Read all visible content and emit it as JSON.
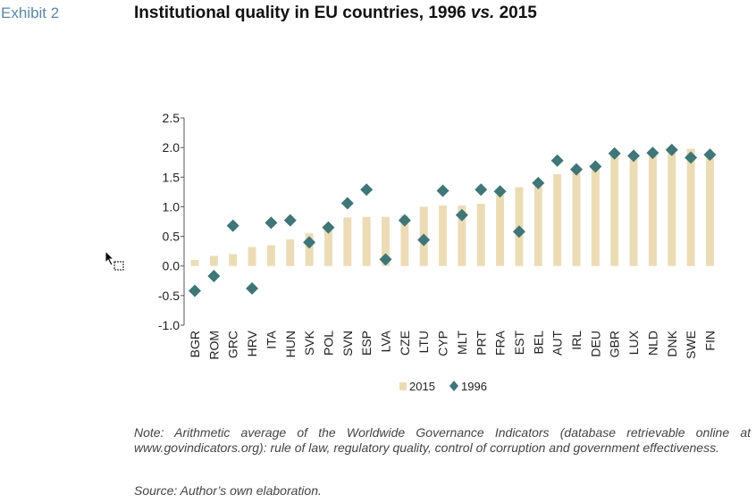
{
  "header": {
    "exhibit": "Exhibit 2",
    "title_main": "Institutional quality in EU countries, 1996 ",
    "title_vs": "vs.",
    "title_end": " 2015"
  },
  "colors": {
    "bar_2015": "#ecdcb6",
    "marker_1996": "#3f7678",
    "exhibit_label": "#5b87a6"
  },
  "chart_data": {
    "type": "bar",
    "title": "Institutional quality in EU countries, 1996 vs. 2015",
    "xlabel": "",
    "ylabel": "",
    "ylim": [
      -1.0,
      2.5
    ],
    "yticks": [
      -1.0,
      -0.5,
      0.0,
      0.5,
      1.0,
      1.5,
      2.0,
      2.5
    ],
    "ytick_labels": [
      "-1.0",
      "-0.5",
      "0.0",
      "0.5",
      "1.0",
      "1.5",
      "2.0",
      "2.5"
    ],
    "grid": false,
    "legend_position": "bottom-center",
    "categories": [
      "BGR",
      "ROM",
      "GRC",
      "HRV",
      "ITA",
      "HUN",
      "SVK",
      "POL",
      "SVN",
      "ESP",
      "LVA",
      "CZE",
      "LTU",
      "CYP",
      "MLT",
      "PRT",
      "FRA",
      "EST",
      "BEL",
      "AUT",
      "IRL",
      "DEU",
      "GBR",
      "LUX",
      "NLD",
      "DNK",
      "SWE",
      "FIN"
    ],
    "series": [
      {
        "name": "2015",
        "kind": "bar",
        "values": [
          0.1,
          0.17,
          0.2,
          0.32,
          0.35,
          0.45,
          0.55,
          0.7,
          0.82,
          0.83,
          0.83,
          0.85,
          1.0,
          1.02,
          1.02,
          1.05,
          1.2,
          1.33,
          1.35,
          1.55,
          1.62,
          1.65,
          1.88,
          1.85,
          1.9,
          1.95,
          1.98,
          1.88
        ]
      },
      {
        "name": "1996",
        "kind": "marker",
        "values": [
          -0.42,
          -0.17,
          0.68,
          -0.38,
          0.73,
          0.77,
          0.4,
          0.65,
          1.06,
          1.29,
          0.11,
          0.77,
          0.44,
          1.27,
          0.86,
          1.29,
          1.26,
          0.58,
          1.4,
          1.78,
          1.63,
          1.68,
          1.9,
          1.86,
          1.91,
          1.96,
          1.83,
          1.88
        ]
      }
    ]
  },
  "footer": {
    "note": "Note: Arithmetic average of the Worldwide Governance Indicators (database retrievable online at www.govindicators.org): rule of law, regulatory quality, control of corruption and government effectiveness.",
    "source": "Source: Author’s own elaboration."
  }
}
